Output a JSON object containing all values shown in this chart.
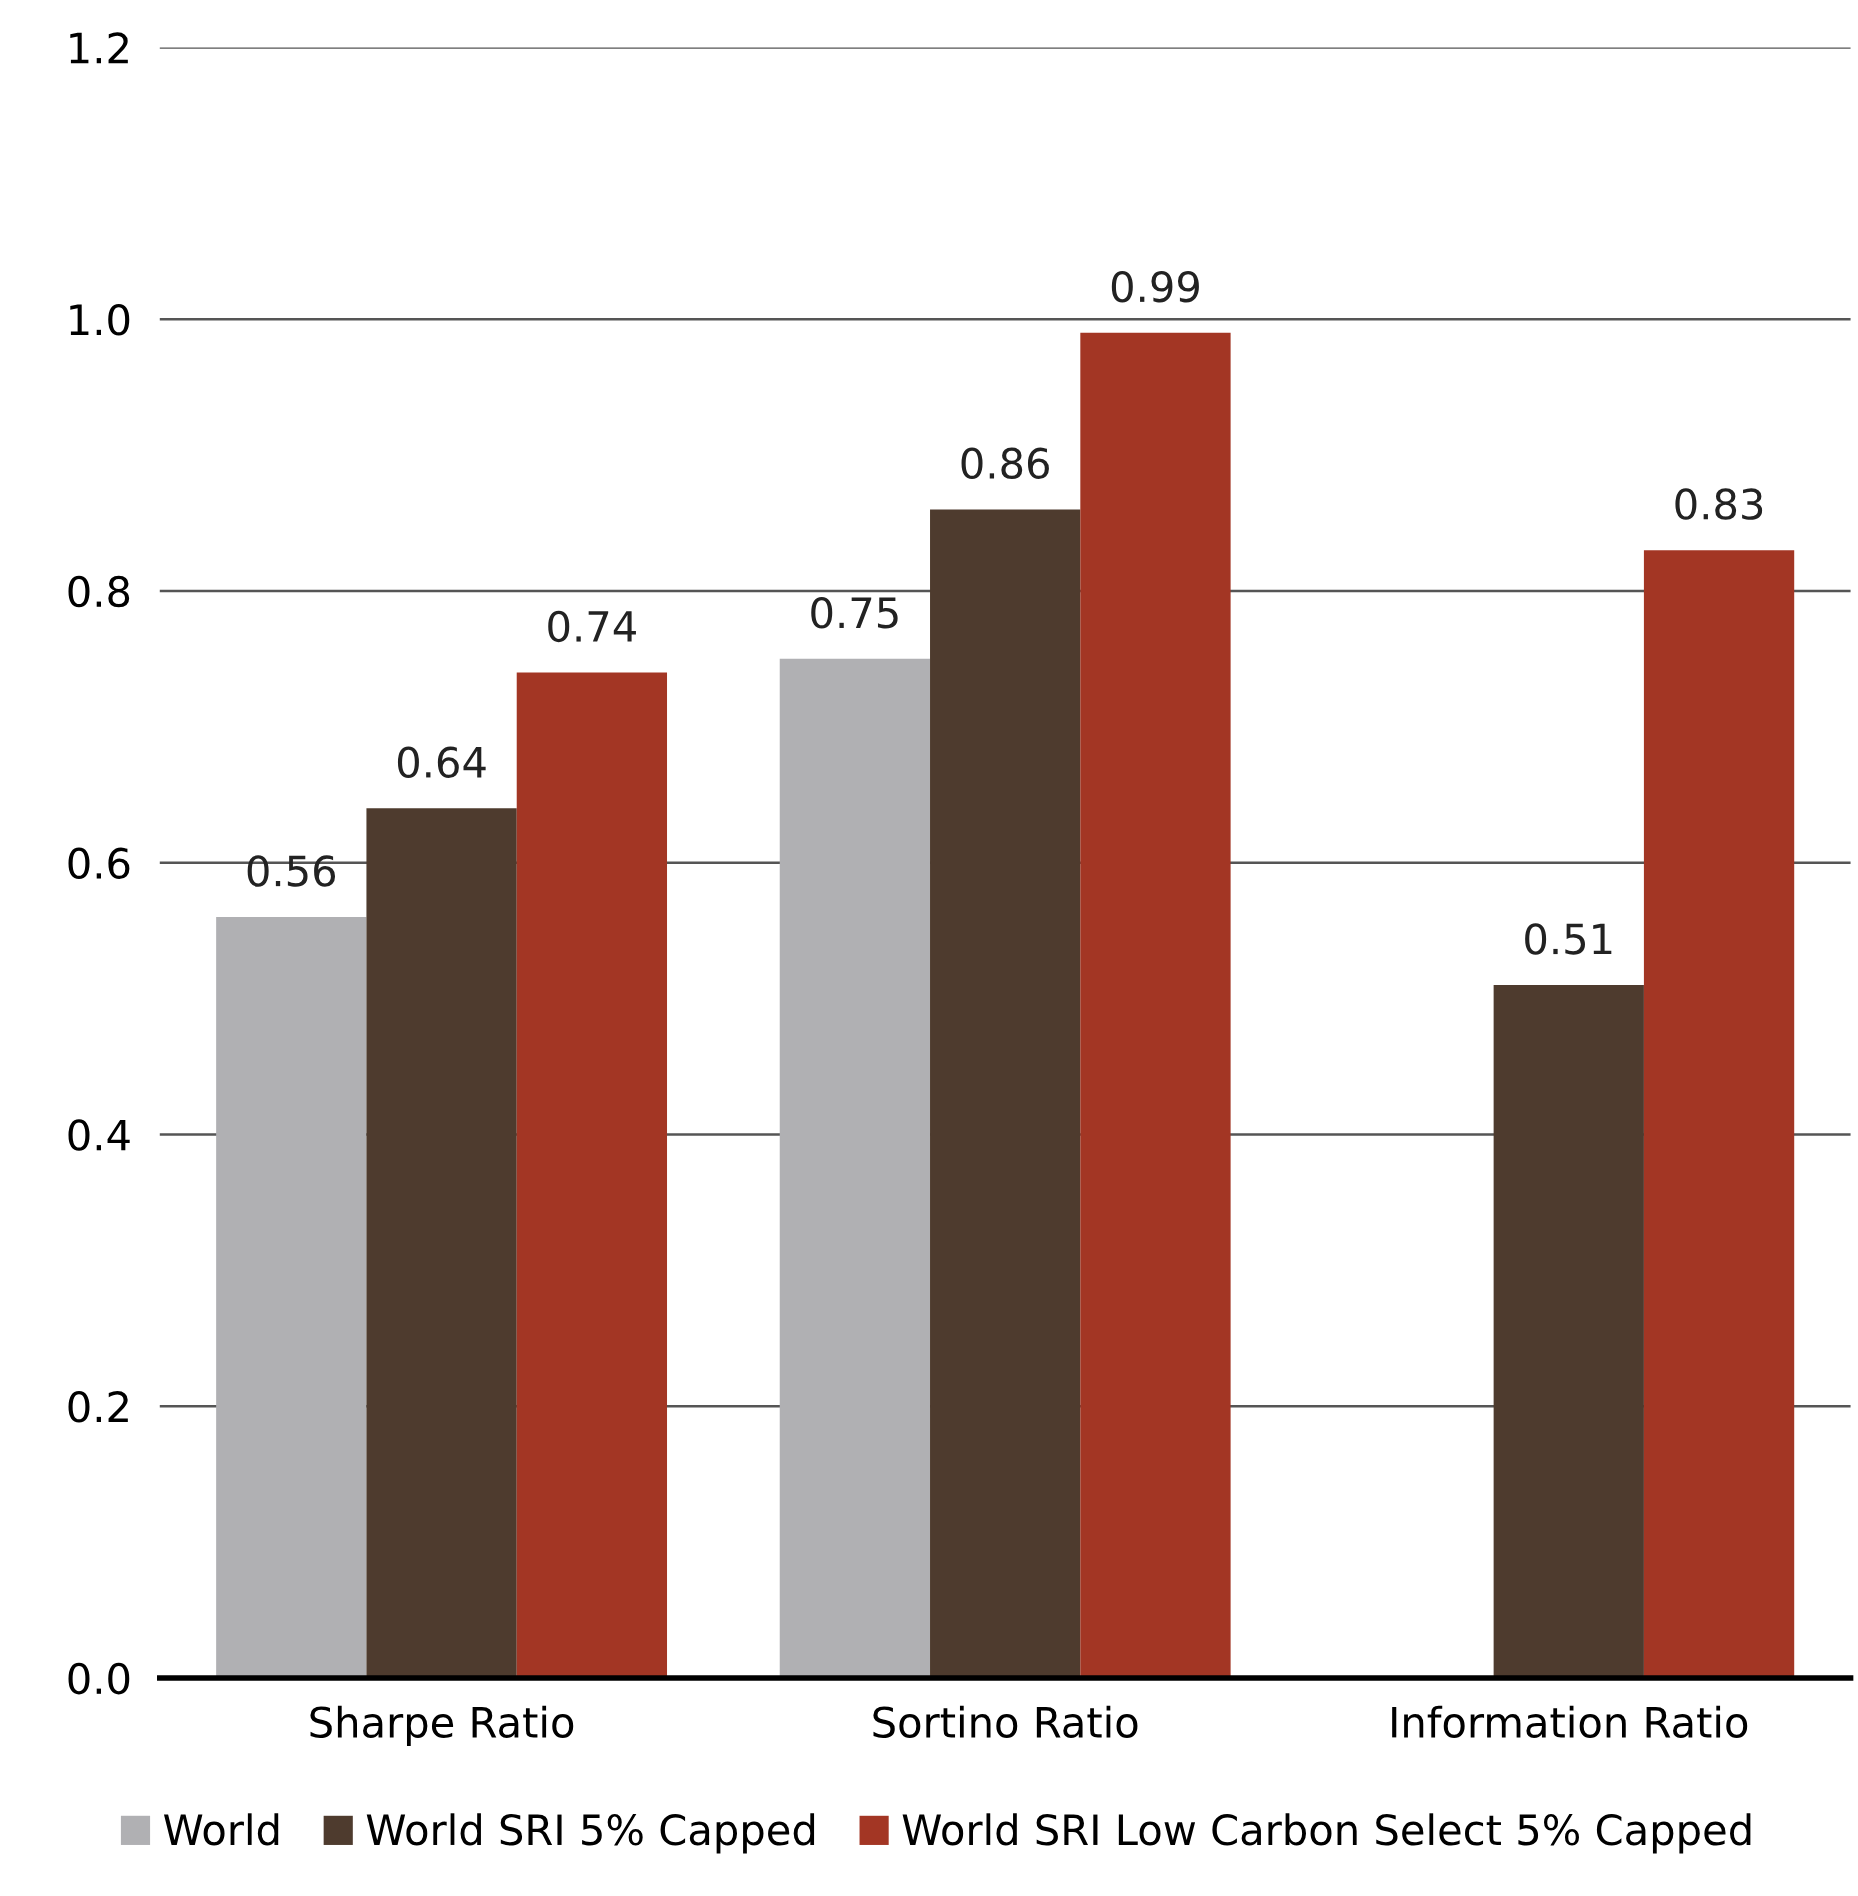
{
  "chart_data": {
    "type": "bar",
    "categories": [
      "Sharpe Ratio",
      "Sortino Ratio",
      "Information Ratio"
    ],
    "series": [
      {
        "name": "World",
        "color": "#b0b0b3",
        "values": [
          0.56,
          0.75,
          null
        ]
      },
      {
        "name": "World SRI 5% Capped",
        "color": "#4e3b2e",
        "values": [
          0.64,
          0.86,
          0.51
        ]
      },
      {
        "name": "World SRI Low Carbon Select 5% Capped",
        "color": "#a33624",
        "values": [
          0.74,
          0.99,
          0.83
        ]
      }
    ],
    "ylim": [
      0,
      1.2
    ],
    "yticks": [
      "0.0",
      "0.2",
      "0.4",
      "0.6",
      "0.8",
      "1.0",
      "1.2"
    ],
    "grid": "y",
    "legend": "bottom",
    "data_labels": true
  }
}
